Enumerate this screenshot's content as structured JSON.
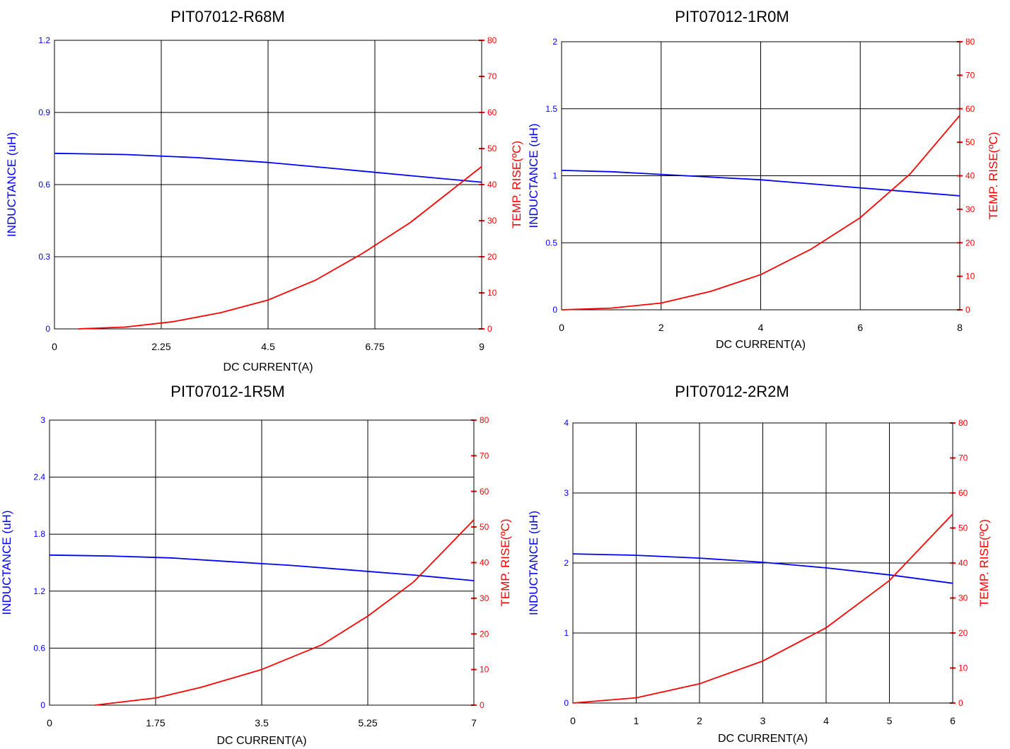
{
  "colors": {
    "inductance": "#0000ff",
    "temp": "#ff0000",
    "grid": "#000000"
  },
  "chart_data": [
    {
      "type": "line",
      "title": "PIT07012-R68M",
      "xlabel": "DC CURRENT(A)",
      "ylabel_left": "INDUCTANCE (uH)",
      "ylabel_right": "TEMP. RISE(ºC)",
      "xlim": [
        0,
        9
      ],
      "xticks": [
        "0",
        "2.25",
        "4.5",
        "6.75",
        "9"
      ],
      "ylim_left": [
        0,
        1.2
      ],
      "yticks_left": [
        "0",
        "0.3",
        "0.6",
        "0.9",
        "1.2"
      ],
      "ylim_right": [
        0,
        80
      ],
      "yticks_right": [
        "0",
        "10",
        "20",
        "30",
        "40",
        "50",
        "60",
        "70",
        "80"
      ],
      "series": [
        {
          "name": "INDUCTANCE (uH)",
          "axis": "left",
          "x": [
            0,
            1.5,
            3,
            4.5,
            6,
            7.5,
            9
          ],
          "y": [
            0.73,
            0.725,
            0.712,
            0.692,
            0.665,
            0.637,
            0.61
          ]
        },
        {
          "name": "TEMP. RISE(ºC)",
          "axis": "right",
          "x": [
            0.5,
            1.5,
            2.5,
            3.5,
            4.5,
            5.5,
            6.5,
            7.5,
            9
          ],
          "y": [
            0,
            0.5,
            2,
            4.5,
            8,
            13.5,
            21,
            29.5,
            45
          ]
        }
      ]
    },
    {
      "type": "line",
      "title": "PIT07012-1R0M",
      "xlabel": "DC CURRENT(A)",
      "ylabel_left": "INDUCTANCE (uH)",
      "ylabel_right": "TEMP. RISE(ºC)",
      "xlim": [
        0,
        8
      ],
      "xticks": [
        "0",
        "2",
        "4",
        "6",
        "8"
      ],
      "ylim_left": [
        0,
        2
      ],
      "yticks_left": [
        "0",
        "0.5",
        "1",
        "1.5",
        "2"
      ],
      "ylim_right": [
        0,
        80
      ],
      "yticks_right": [
        "0",
        "10",
        "20",
        "30",
        "40",
        "50",
        "60",
        "70",
        "80"
      ],
      "series": [
        {
          "name": "INDUCTANCE (uH)",
          "axis": "left",
          "x": [
            0,
            1,
            2,
            3,
            4,
            5,
            6,
            7,
            8
          ],
          "y": [
            1.04,
            1.03,
            1.01,
            0.99,
            0.97,
            0.94,
            0.91,
            0.88,
            0.85
          ]
        },
        {
          "name": "TEMP. RISE(ºC)",
          "axis": "right",
          "x": [
            0,
            1,
            2,
            3,
            4,
            5,
            6,
            7,
            8
          ],
          "y": [
            0,
            0.5,
            2,
            5.5,
            10.5,
            18,
            27.5,
            40.5,
            58
          ]
        }
      ]
    },
    {
      "type": "line",
      "title": "PIT07012-1R5M",
      "xlabel": "DC CURRENT(A)",
      "ylabel_left": "INDUCTANCE (uH)",
      "ylabel_right": "TEMP. RISE(ºC)",
      "xlim": [
        0,
        7
      ],
      "xticks": [
        "0",
        "1.75",
        "3.5",
        "5.25",
        "7"
      ],
      "ylim_left": [
        0,
        3
      ],
      "yticks_left": [
        "0",
        "0.6",
        "1.2",
        "1.8",
        "2.4",
        "3"
      ],
      "ylim_right": [
        0,
        80
      ],
      "yticks_right": [
        "0",
        "10",
        "20",
        "30",
        "40",
        "50",
        "60",
        "70",
        "80"
      ],
      "series": [
        {
          "name": "INDUCTANCE (uH)",
          "axis": "left",
          "x": [
            0,
            1,
            2,
            3,
            4,
            5,
            6,
            7
          ],
          "y": [
            1.58,
            1.57,
            1.55,
            1.51,
            1.47,
            1.42,
            1.37,
            1.31
          ]
        },
        {
          "name": "TEMP. RISE(ºC)",
          "axis": "right",
          "x": [
            0.75,
            1.75,
            2.5,
            3.5,
            4.5,
            5.25,
            6,
            7
          ],
          "y": [
            0,
            2,
            5,
            10,
            17,
            25,
            34.5,
            52
          ]
        }
      ]
    },
    {
      "type": "line",
      "title": "PIT07012-2R2M",
      "xlabel": "DC CURRENT(A)",
      "ylabel_left": "INDUCTANCE (uH)",
      "ylabel_right": "TEMP. RISE(ºC)",
      "xlim": [
        0,
        6
      ],
      "xticks": [
        "0",
        "1",
        "2",
        "3",
        "4",
        "5",
        "6"
      ],
      "ylim_left": [
        0,
        4
      ],
      "yticks_left": [
        "0",
        "1",
        "2",
        "3",
        "4"
      ],
      "ylim_right": [
        0,
        80
      ],
      "yticks_right": [
        "0",
        "10",
        "20",
        "30",
        "40",
        "50",
        "60",
        "70",
        "80"
      ],
      "series": [
        {
          "name": "INDUCTANCE (uH)",
          "axis": "left",
          "x": [
            0,
            1,
            2,
            3,
            4,
            5,
            6
          ],
          "y": [
            2.13,
            2.11,
            2.07,
            2.01,
            1.93,
            1.83,
            1.71
          ]
        },
        {
          "name": "TEMP. RISE(ºC)",
          "axis": "right",
          "x": [
            0,
            1,
            2,
            3,
            4,
            5,
            6
          ],
          "y": [
            0,
            1.5,
            5.5,
            12,
            21.5,
            35,
            54
          ]
        }
      ]
    }
  ]
}
